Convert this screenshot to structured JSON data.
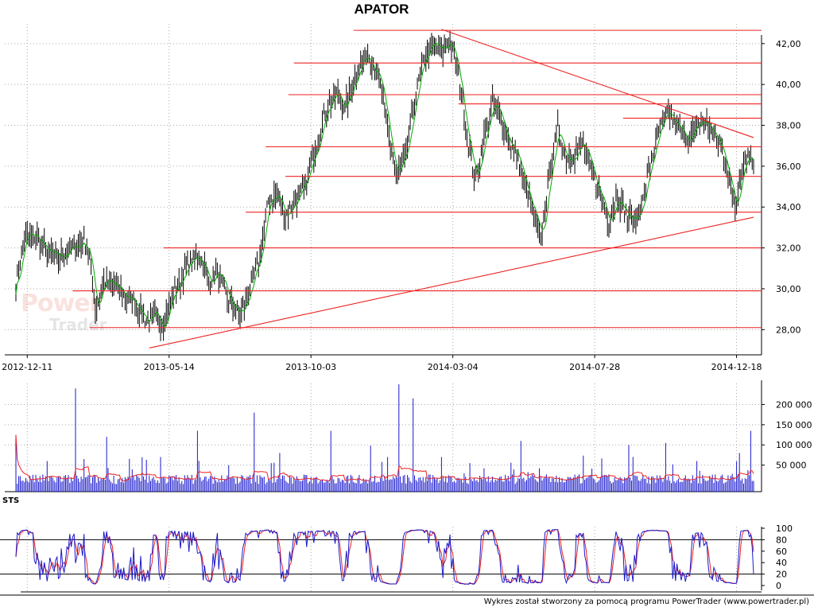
{
  "title": "APATOR",
  "indicator_label": "STS",
  "credit": "Wykres został stworzony za pomocą programu PowerTrader (www.powertrader.pl)",
  "watermark": {
    "line1": "Power",
    "line2": "Trader"
  },
  "colors": {
    "price_bar": "#000000",
    "moving_average": "#00aa00",
    "levels": "#ee2222",
    "volume_bar": "#1a1acc",
    "volume_ma": "#ee2222",
    "sts_k": "#1a1acc",
    "sts_d": "#ee2222",
    "grid": "#a8a8a8"
  },
  "chart_data": [
    {
      "type": "ohlc",
      "name": "price",
      "ylim": [
        27.0,
        43.2
      ],
      "yticks": [
        "28,00",
        "30,00",
        "32,00",
        "34,00",
        "36,00",
        "38,00",
        "40,00",
        "42,00"
      ],
      "xticks": [
        "2012-12-11",
        "2013-05-14",
        "2013-10-03",
        "2014-03-04",
        "2014-07-28",
        "2014-12-18"
      ],
      "x_index_range": [
        0,
        520
      ],
      "xtick_index": [
        8,
        108,
        208,
        308,
        408,
        508
      ],
      "close_anchors": [
        [
          0,
          30.1
        ],
        [
          6,
          32.5
        ],
        [
          14,
          32.6
        ],
        [
          22,
          31.8
        ],
        [
          30,
          31.5
        ],
        [
          40,
          32.0
        ],
        [
          48,
          32.3
        ],
        [
          52,
          31.6
        ],
        [
          56,
          29.0
        ],
        [
          62,
          30.4
        ],
        [
          70,
          30.1
        ],
        [
          78,
          29.6
        ],
        [
          85,
          29.3
        ],
        [
          92,
          28.4
        ],
        [
          98,
          28.6
        ],
        [
          104,
          28.3
        ],
        [
          110,
          29.6
        ],
        [
          118,
          30.7
        ],
        [
          124,
          31.4
        ],
        [
          130,
          31.6
        ],
        [
          136,
          30.3
        ],
        [
          142,
          30.8
        ],
        [
          150,
          29.4
        ],
        [
          158,
          28.7
        ],
        [
          166,
          30.1
        ],
        [
          172,
          31.6
        ],
        [
          178,
          34.3
        ],
        [
          184,
          34.6
        ],
        [
          190,
          33.6
        ],
        [
          196,
          34.2
        ],
        [
          203,
          34.9
        ],
        [
          210,
          36.6
        ],
        [
          218,
          38.7
        ],
        [
          226,
          39.6
        ],
        [
          232,
          38.8
        ],
        [
          240,
          40.6
        ],
        [
          248,
          41.5
        ],
        [
          256,
          40.3
        ],
        [
          262,
          37.8
        ],
        [
          268,
          35.5
        ],
        [
          275,
          36.5
        ],
        [
          282,
          39.6
        ],
        [
          288,
          41.3
        ],
        [
          294,
          42.0
        ],
        [
          300,
          41.6
        ],
        [
          306,
          42.2
        ],
        [
          312,
          40.4
        ],
        [
          318,
          37.5
        ],
        [
          324,
          35.3
        ],
        [
          330,
          37.4
        ],
        [
          336,
          39.0
        ],
        [
          342,
          38.4
        ],
        [
          348,
          37.1
        ],
        [
          354,
          36.4
        ],
        [
          360,
          34.7
        ],
        [
          366,
          33.4
        ],
        [
          370,
          32.3
        ],
        [
          376,
          35.6
        ],
        [
          382,
          37.8
        ],
        [
          388,
          36.4
        ],
        [
          394,
          36.6
        ],
        [
          400,
          37.1
        ],
        [
          406,
          35.6
        ],
        [
          412,
          34.6
        ],
        [
          418,
          33.3
        ],
        [
          424,
          34.6
        ],
        [
          430,
          33.6
        ],
        [
          436,
          33.3
        ],
        [
          442,
          34.3
        ],
        [
          448,
          36.4
        ],
        [
          454,
          37.8
        ],
        [
          460,
          38.6
        ],
        [
          466,
          37.9
        ],
        [
          472,
          37.4
        ],
        [
          478,
          37.6
        ],
        [
          484,
          38.3
        ],
        [
          490,
          37.8
        ],
        [
          496,
          37.1
        ],
        [
          502,
          35.5
        ],
        [
          508,
          34.0
        ],
        [
          512,
          35.9
        ],
        [
          516,
          36.8
        ],
        [
          520,
          36.2
        ]
      ],
      "horizontal_levels": [
        {
          "y": 42.65,
          "from_index": 238
        },
        {
          "y": 41.05,
          "from_index": 196
        },
        {
          "y": 39.5,
          "from_index": 192
        },
        {
          "y": 39.05,
          "from_index": 312
        },
        {
          "y": 38.35,
          "from_index": 428
        },
        {
          "y": 36.95,
          "from_index": 176
        },
        {
          "y": 35.5,
          "from_index": 190
        },
        {
          "y": 33.75,
          "from_index": 162
        },
        {
          "y": 32.0,
          "from_index": 104
        },
        {
          "y": 29.9,
          "from_index": 40
        },
        {
          "y": 28.1,
          "from_index": 52
        }
      ],
      "trendlines": [
        {
          "from": [
            94,
            27.1
          ],
          "to": [
            520,
            33.5
          ]
        },
        {
          "from": [
            300,
            42.7
          ],
          "to": [
            520,
            37.4
          ]
        }
      ]
    },
    {
      "type": "bar",
      "name": "volume",
      "ylim": [
        0,
        260000
      ],
      "yticks": [
        "50 000",
        "100 000",
        "150 000",
        "200 000"
      ],
      "ytick_values": [
        50000,
        100000,
        150000,
        200000
      ],
      "spikes": [
        [
          0,
          125000
        ],
        [
          22,
          60000
        ],
        [
          42,
          240000
        ],
        [
          48,
          65000
        ],
        [
          64,
          120000
        ],
        [
          102,
          70000
        ],
        [
          128,
          135000
        ],
        [
          168,
          180000
        ],
        [
          180,
          55000
        ],
        [
          186,
          80000
        ],
        [
          222,
          135000
        ],
        [
          250,
          98000
        ],
        [
          262,
          70000
        ],
        [
          270,
          250000
        ],
        [
          280,
          215000
        ],
        [
          300,
          70000
        ],
        [
          320,
          55000
        ],
        [
          356,
          110000
        ],
        [
          432,
          100000
        ],
        [
          458,
          105000
        ],
        [
          480,
          60000
        ],
        [
          510,
          80000
        ],
        [
          518,
          135000
        ]
      ],
      "base_level": 15000,
      "moving_average_level": 15000
    },
    {
      "type": "line",
      "name": "stochastic",
      "ylim": [
        0,
        100
      ],
      "yticks": [
        "0",
        "20",
        "40",
        "60",
        "80",
        "100"
      ],
      "ytick_values": [
        0,
        20,
        40,
        60,
        80,
        100
      ],
      "reference_lines": [
        20,
        80
      ]
    }
  ]
}
